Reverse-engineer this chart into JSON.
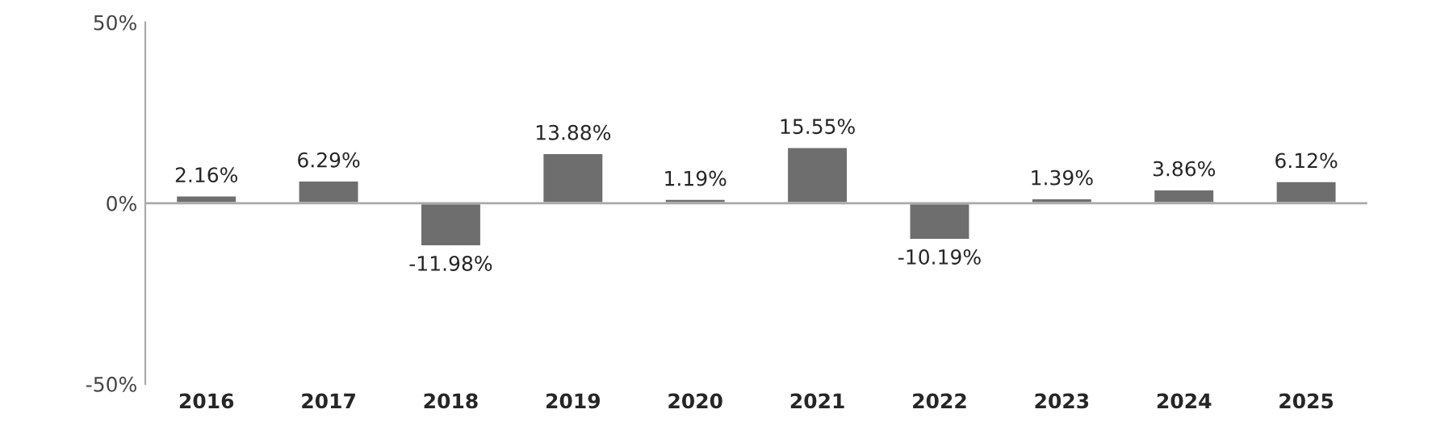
{
  "chart_data": {
    "type": "bar",
    "categories": [
      "2016",
      "2017",
      "2018",
      "2019",
      "2020",
      "2021",
      "2022",
      "2023",
      "2024",
      "2025"
    ],
    "values": [
      2.16,
      6.29,
      -11.98,
      13.88,
      1.19,
      15.55,
      -10.19,
      1.39,
      3.86,
      6.12
    ],
    "value_labels": [
      "2.16%",
      "6.29%",
      "-11.98%",
      "13.88%",
      "1.19%",
      "15.55%",
      "-10.19%",
      "1.39%",
      "3.86%",
      "6.12%"
    ],
    "color": "#6e6e6e",
    "ylim": [
      -50,
      50
    ],
    "yticks": [
      {
        "value": -50,
        "label": "-50%"
      },
      {
        "value": 0,
        "label": "0%"
      },
      {
        "value": 50,
        "label": "50%"
      }
    ],
    "ref_lines": [
      {
        "axis": "y",
        "value": 0,
        "color": "#aaaaaa"
      }
    ],
    "legend": false
  }
}
